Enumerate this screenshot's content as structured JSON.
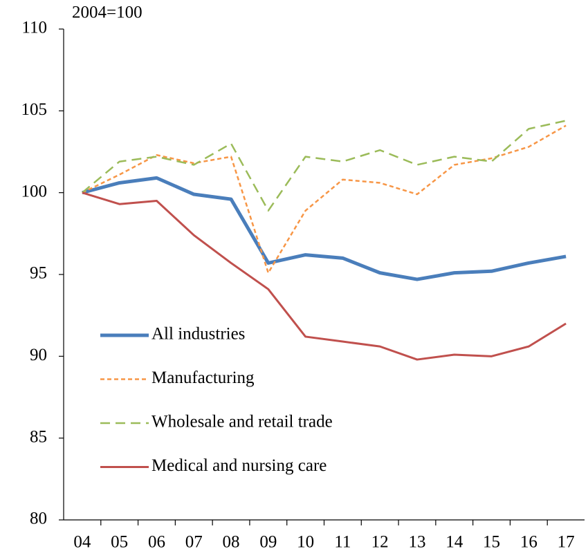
{
  "chart_data": {
    "type": "line",
    "y_label": "2004=100",
    "categories": [
      "04",
      "05",
      "06",
      "07",
      "08",
      "09",
      "10",
      "11",
      "12",
      "13",
      "14",
      "15",
      "16",
      "17"
    ],
    "series": [
      {
        "name": "All industries",
        "color": "#4a7ebb",
        "style": "solid",
        "width": 5,
        "values": [
          100,
          100.6,
          100.9,
          99.9,
          99.6,
          95.7,
          96.2,
          96.0,
          95.1,
          94.7,
          95.1,
          95.2,
          95.7,
          96.1
        ]
      },
      {
        "name": "Manufacturing",
        "color": "#f79646",
        "style": "dotted",
        "width": 2.5,
        "values": [
          100,
          101.1,
          102.3,
          101.8,
          102.2,
          95.1,
          98.9,
          100.8,
          100.6,
          99.9,
          101.7,
          102.1,
          102.8,
          104.1
        ]
      },
      {
        "name": "Wholesale and retail trade",
        "color": "#9bbb59",
        "style": "dashed",
        "width": 2.5,
        "values": [
          100,
          101.9,
          102.2,
          101.7,
          103.0,
          98.9,
          102.2,
          101.9,
          102.6,
          101.7,
          102.2,
          101.9,
          103.9,
          104.4
        ]
      },
      {
        "name": "Medical and nursing care",
        "color": "#c0504d",
        "style": "solid",
        "width": 3,
        "values": [
          100,
          99.3,
          99.5,
          97.4,
          95.7,
          94.1,
          91.2,
          90.9,
          90.6,
          89.8,
          90.1,
          90.0,
          90.6,
          92.0
        ]
      }
    ],
    "ylim": [
      80,
      110
    ],
    "yticks": [
      80,
      85,
      90,
      95,
      100,
      105,
      110
    ],
    "grid": false
  }
}
